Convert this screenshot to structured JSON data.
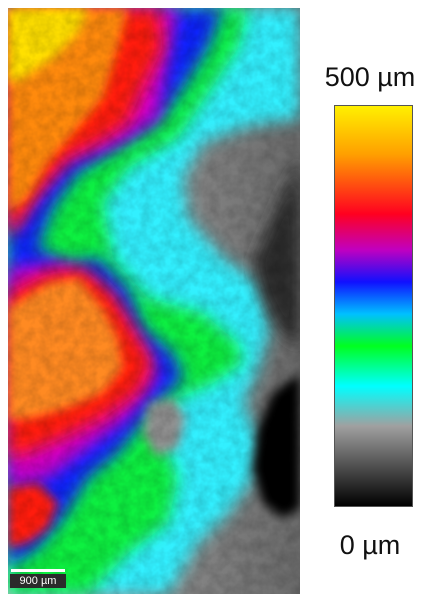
{
  "image": {
    "description_label": "height-map",
    "scale_bar": {
      "label": "900 µm"
    },
    "colorbar": {
      "max_label": "500 µm",
      "min_label": "0 µm",
      "stops": [
        {
          "offset": 0.0,
          "color": "#fff000"
        },
        {
          "offset": 0.12,
          "color": "#ffa000"
        },
        {
          "offset": 0.27,
          "color": "#ff0020"
        },
        {
          "offset": 0.36,
          "color": "#c000c0"
        },
        {
          "offset": 0.44,
          "color": "#1010ff"
        },
        {
          "offset": 0.52,
          "color": "#00c0ff"
        },
        {
          "offset": 0.6,
          "color": "#00ff20"
        },
        {
          "offset": 0.7,
          "color": "#00ffff"
        },
        {
          "offset": 0.8,
          "color": "#a0a0a0"
        },
        {
          "offset": 1.0,
          "color": "#000000"
        }
      ]
    }
  }
}
